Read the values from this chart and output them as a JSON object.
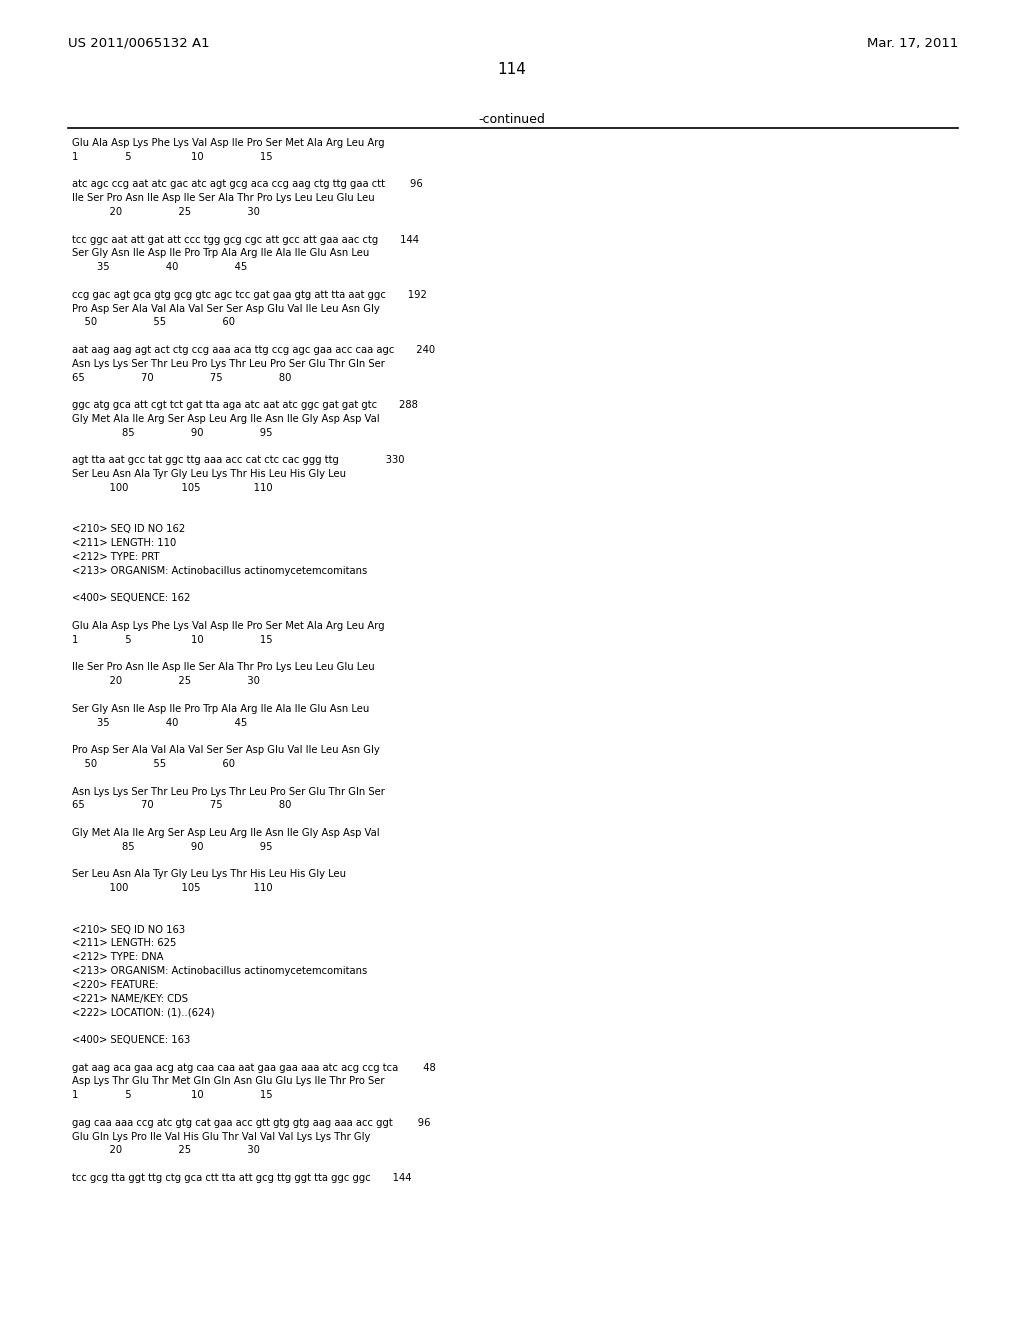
{
  "bg_color": "#ffffff",
  "header_left": "US 2011/0065132 A1",
  "header_right": "Mar. 17, 2011",
  "page_number": "114",
  "continued_label": "-continued",
  "content_lines": [
    "Glu Ala Asp Lys Phe Lys Val Asp Ile Pro Ser Met Ala Arg Leu Arg",
    "1               5                   10                  15",
    "",
    "atc agc ccg aat atc gac atc agt gcg aca ccg aag ctg ttg gaa ctt        96",
    "Ile Ser Pro Asn Ile Asp Ile Ser Ala Thr Pro Lys Leu Leu Glu Leu",
    "            20                  25                  30",
    "",
    "tcc ggc aat att gat att ccc tgg gcg cgc att gcc att gaa aac ctg       144",
    "Ser Gly Asn Ile Asp Ile Pro Trp Ala Arg Ile Ala Ile Glu Asn Leu",
    "        35                  40                  45",
    "",
    "ccg gac agt gca gtg gcg gtc agc tcc gat gaa gtg att tta aat ggc       192",
    "Pro Asp Ser Ala Val Ala Val Ser Ser Asp Glu Val Ile Leu Asn Gly",
    "    50                  55                  60",
    "",
    "aat aag aag agt act ctg ccg aaa aca ttg ccg agc gaa acc caa agc       240",
    "Asn Lys Lys Ser Thr Leu Pro Lys Thr Leu Pro Ser Glu Thr Gln Ser",
    "65                  70                  75                  80",
    "",
    "ggc atg gca att cgt tct gat tta aga atc aat atc ggc gat gat gtc       288",
    "Gly Met Ala Ile Arg Ser Asp Leu Arg Ile Asn Ile Gly Asp Asp Val",
    "                85                  90                  95",
    "",
    "agt tta aat gcc tat ggc ttg aaa acc cat ctc cac ggg ttg               330",
    "Ser Leu Asn Ala Tyr Gly Leu Lys Thr His Leu His Gly Leu",
    "            100                 105                 110",
    "",
    "",
    "<210> SEQ ID NO 162",
    "<211> LENGTH: 110",
    "<212> TYPE: PRT",
    "<213> ORGANISM: Actinobacillus actinomycetemcomitans",
    "",
    "<400> SEQUENCE: 162",
    "",
    "Glu Ala Asp Lys Phe Lys Val Asp Ile Pro Ser Met Ala Arg Leu Arg",
    "1               5                   10                  15",
    "",
    "Ile Ser Pro Asn Ile Asp Ile Ser Ala Thr Pro Lys Leu Leu Glu Leu",
    "            20                  25                  30",
    "",
    "Ser Gly Asn Ile Asp Ile Pro Trp Ala Arg Ile Ala Ile Glu Asn Leu",
    "        35                  40                  45",
    "",
    "Pro Asp Ser Ala Val Ala Val Ser Ser Asp Glu Val Ile Leu Asn Gly",
    "    50                  55                  60",
    "",
    "Asn Lys Lys Ser Thr Leu Pro Lys Thr Leu Pro Ser Glu Thr Gln Ser",
    "65                  70                  75                  80",
    "",
    "Gly Met Ala Ile Arg Ser Asp Leu Arg Ile Asn Ile Gly Asp Asp Val",
    "                85                  90                  95",
    "",
    "Ser Leu Asn Ala Tyr Gly Leu Lys Thr His Leu His Gly Leu",
    "            100                 105                 110",
    "",
    "",
    "<210> SEQ ID NO 163",
    "<211> LENGTH: 625",
    "<212> TYPE: DNA",
    "<213> ORGANISM: Actinobacillus actinomycetemcomitans",
    "<220> FEATURE:",
    "<221> NAME/KEY: CDS",
    "<222> LOCATION: (1)..(624)",
    "",
    "<400> SEQUENCE: 163",
    "",
    "gat aag aca gaa acg atg caa caa aat gaa gaa aaa atc acg ccg tca        48",
    "Asp Lys Thr Glu Thr Met Gln Gln Asn Glu Glu Lys Ile Thr Pro Ser",
    "1               5                   10                  15",
    "",
    "gag caa aaa ccg atc gtg cat gaa acc gtt gtg gtg aag aaa acc ggt        96",
    "Glu Gln Lys Pro Ile Val His Glu Thr Val Val Val Lys Lys Thr Gly",
    "            20                  25                  30",
    "",
    "tcc gcg tta ggt ttg ctg gca ctt tta att gcg ttg ggt tta ggc ggc       144"
  ]
}
